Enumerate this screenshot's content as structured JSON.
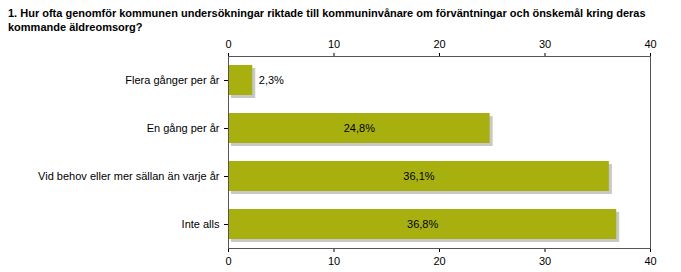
{
  "chart_data": {
    "type": "bar",
    "orientation": "horizontal",
    "title": "1. Hur ofta genomför kommunen undersökningar riktade till kommuninvånare om förväntningar och önskemål kring deras kommande äldreomsorg?",
    "categories": [
      "Flera gånger per år",
      "En gång per år",
      "Vid behov eller mer sällan än varje år",
      "Inte alls"
    ],
    "values": [
      2.3,
      24.8,
      36.1,
      36.8
    ],
    "value_labels": [
      "2,3%",
      "24,8%",
      "36,1%",
      "36,8%"
    ],
    "data_labels": true,
    "color": "#a8b00f",
    "xlim": [
      0,
      40
    ],
    "xticks": [
      0,
      10,
      20,
      30,
      40
    ],
    "grid": false
  }
}
